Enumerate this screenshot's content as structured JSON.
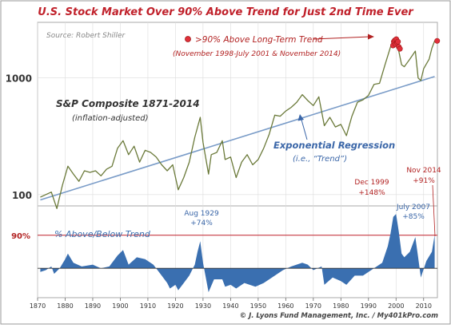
{
  "chart_data": {
    "type": "line",
    "title": "U.S. Stock Market Over 90% Above Trend for Just 2nd Time Ever",
    "source": "Source: Robert Shiller",
    "credit": "© J. Lyons Fund Management, Inc. / My401kPro.com",
    "colors": {
      "title": "#c0202a",
      "price": "#6b7a3a",
      "trend": "#7a9cc8",
      "deviation": "#3a6fb0",
      "red_text": "#b22222",
      "blue_text": "#3a66a8",
      "marker": "#e0303a",
      "grid": "#dcdcdc"
    },
    "x_axis": {
      "range": [
        1870,
        2015
      ],
      "ticks": [
        "1870",
        "1880",
        "1890",
        "1900",
        "1910",
        "1920",
        "1930",
        "1940",
        "1950",
        "1960",
        "1970",
        "1980",
        "1990",
        "2000",
        "2010"
      ]
    },
    "top_panel": {
      "scale": "log",
      "range": [
        80,
        3000
      ],
      "tick_labels": [
        "100",
        "1000"
      ],
      "price_label": "S&P Composite 1871-2014",
      "price_sublabel": "(inflation-adjusted)",
      "trend_label": "Exponential Regression",
      "trend_sublabel": "(i.e., “Trend”)",
      "legend_label": ">90% Above Long-Term Trend",
      "legend_sublabel": "(November 1998-July 2001 & November 2014)",
      "trend": {
        "x": [
          1871,
          2014
        ],
        "y": [
          90,
          1030
        ]
      },
      "price": {
        "x": [
          1871,
          1873,
          1875,
          1877,
          1879,
          1881,
          1883,
          1885,
          1887,
          1889,
          1891,
          1893,
          1895,
          1897,
          1899,
          1901,
          1903,
          1905,
          1907,
          1909,
          1911,
          1913,
          1915,
          1917,
          1919,
          1921,
          1923,
          1925,
          1927,
          1929,
          1930,
          1932,
          1933,
          1935,
          1937,
          1938,
          1940,
          1942,
          1944,
          1946,
          1948,
          1950,
          1952,
          1954,
          1956,
          1958,
          1960,
          1962,
          1964,
          1966,
          1968,
          1970,
          1972,
          1974,
          1976,
          1978,
          1980,
          1982,
          1984,
          1986,
          1988,
          1990,
          1992,
          1994,
          1996,
          1998,
          1999,
          2000,
          2001,
          2002,
          2003,
          2005,
          2007,
          2008,
          2009,
          2010,
          2012,
          2013,
          2014
        ],
        "y": [
          95,
          100,
          105,
          76,
          120,
          175,
          150,
          130,
          160,
          155,
          160,
          145,
          165,
          175,
          250,
          290,
          220,
          260,
          190,
          240,
          230,
          210,
          180,
          160,
          180,
          110,
          140,
          190,
          310,
          460,
          280,
          150,
          220,
          230,
          290,
          200,
          210,
          140,
          190,
          220,
          180,
          200,
          250,
          330,
          480,
          470,
          520,
          560,
          620,
          720,
          640,
          580,
          690,
          390,
          460,
          380,
          400,
          320,
          470,
          620,
          650,
          710,
          880,
          900,
          1300,
          1850,
          2100,
          2050,
          1700,
          1300,
          1250,
          1450,
          1700,
          1000,
          950,
          1200,
          1450,
          1800,
          2080
        ]
      },
      "highlight_points": {
        "x": [
          1998.9,
          1999.2,
          1999.5,
          1999.8,
          2000.1,
          2000.4,
          2000.7,
          2001.0,
          2001.4,
          2014.9
        ],
        "y": [
          1900,
          2050,
          2100,
          1950,
          2150,
          2000,
          2050,
          1850,
          1780,
          2080
        ]
      }
    },
    "bottom_panel": {
      "series_name": "% Above/Below Trend",
      "reference_label": "90%",
      "reference_value": 90,
      "range": [
        -80,
        170
      ],
      "x": [
        1871,
        1873,
        1875,
        1876,
        1878,
        1880,
        1881,
        1883,
        1886,
        1890,
        1893,
        1896,
        1899,
        1901,
        1903,
        1906,
        1909,
        1912,
        1915,
        1917,
        1918,
        1920,
        1921,
        1923,
        1925,
        1927,
        1928,
        1929,
        1930,
        1932,
        1934,
        1937,
        1938,
        1940,
        1942,
        1945,
        1949,
        1952,
        1955,
        1959,
        1962,
        1966,
        1968,
        1970,
        1973,
        1974,
        1977,
        1980,
        1982,
        1985,
        1988,
        1990,
        1993,
        1995,
        1997,
        1998,
        1999,
        2000,
        2001,
        2002,
        2003,
        2005,
        2007,
        2008,
        2009,
        2011,
        2013,
        2014
      ],
      "y": [
        -10,
        -5,
        5,
        -15,
        0,
        25,
        40,
        15,
        5,
        10,
        0,
        5,
        35,
        50,
        10,
        30,
        25,
        10,
        -20,
        -40,
        -55,
        -45,
        -60,
        -40,
        -20,
        10,
        45,
        74,
        15,
        -65,
        -30,
        -30,
        -50,
        -45,
        -55,
        -40,
        -50,
        -40,
        -25,
        -5,
        5,
        15,
        10,
        -5,
        5,
        -45,
        -25,
        -35,
        -45,
        -20,
        -20,
        -10,
        5,
        15,
        60,
        95,
        140,
        148,
        100,
        40,
        30,
        45,
        85,
        30,
        -25,
        20,
        45,
        91
      ]
    },
    "annotations": [
      {
        "label": "Aug 1929",
        "value": "+74%"
      },
      {
        "label": "Dec 1999",
        "value": "+148%"
      },
      {
        "label": "July 2007",
        "value": "+85%"
      },
      {
        "label": "Nov 2014",
        "value": "+91%"
      }
    ]
  }
}
